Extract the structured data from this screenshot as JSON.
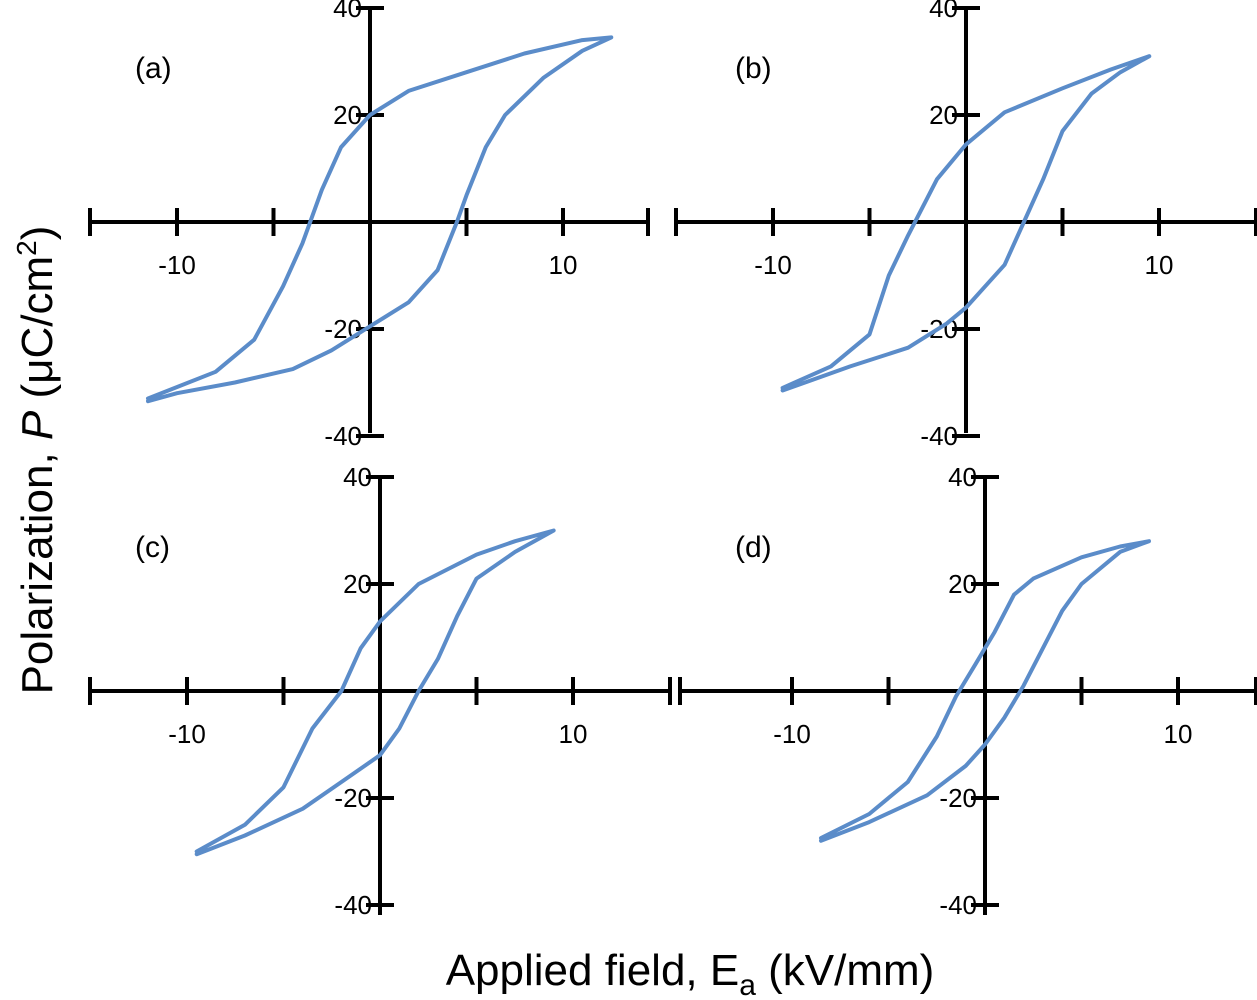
{
  "colors": {
    "series": "#5b8cc9",
    "axes": "#000000"
  },
  "axis_titles": {
    "x_prefix": "Applied field, E",
    "x_sub": "a",
    "x_suffix": " (kV/mm)",
    "y_prefix": "Polarization, ",
    "y_italic": "P",
    "y_suffix": " (μC/cm",
    "y_sup": "2",
    "y_close": ")"
  },
  "chart_data": [
    {
      "type": "line",
      "panel": "(a)",
      "xlim": [
        -15,
        15
      ],
      "ylim": [
        -40,
        40
      ],
      "xticks": [
        -10,
        10
      ],
      "yticks": [
        40,
        20,
        -20,
        -40
      ],
      "x_minor_ticks": [
        -10,
        -5,
        5,
        10
      ],
      "series": [
        {
          "points": [
            [
              -11.5,
              -33
            ],
            [
              -8,
              -28
            ],
            [
              -6,
              -22
            ],
            [
              -4.5,
              -12
            ],
            [
              -3.5,
              -4
            ],
            [
              -2.5,
              6
            ],
            [
              -1.5,
              14
            ],
            [
              0,
              20
            ],
            [
              2,
              24.5
            ],
            [
              5,
              28
            ],
            [
              8,
              31.5
            ],
            [
              11,
              34
            ],
            [
              12.5,
              34.5
            ],
            [
              11,
              32
            ],
            [
              9,
              27
            ],
            [
              7,
              20
            ],
            [
              6,
              14
            ],
            [
              5,
              5
            ],
            [
              4.5,
              0
            ],
            [
              3.5,
              -9
            ],
            [
              2,
              -15
            ],
            [
              0,
              -19.5
            ],
            [
              -2,
              -24
            ],
            [
              -4,
              -27.5
            ],
            [
              -7,
              -30
            ],
            [
              -10,
              -32
            ],
            [
              -11.5,
              -33.5
            ]
          ]
        }
      ]
    },
    {
      "type": "line",
      "panel": "(b)",
      "xlim": [
        -15,
        15
      ],
      "ylim": [
        -40,
        40
      ],
      "xticks": [
        -10,
        10
      ],
      "yticks": [
        40,
        20,
        -20,
        -40
      ],
      "x_minor_ticks": [
        -10,
        -5,
        5,
        10
      ],
      "series": [
        {
          "points": [
            [
              -9.5,
              -31
            ],
            [
              -7,
              -27
            ],
            [
              -5,
              -21
            ],
            [
              -4,
              -10
            ],
            [
              -3,
              -2.5
            ],
            [
              -1.5,
              8
            ],
            [
              0,
              14.5
            ],
            [
              2,
              20.5
            ],
            [
              5,
              25
            ],
            [
              7.5,
              28.5
            ],
            [
              9.5,
              31
            ],
            [
              8,
              28
            ],
            [
              6.5,
              24
            ],
            [
              5,
              17
            ],
            [
              4,
              8
            ],
            [
              3,
              0
            ],
            [
              2,
              -8
            ],
            [
              1,
              -12
            ],
            [
              0,
              -16
            ],
            [
              -1,
              -19
            ],
            [
              -3,
              -23.5
            ],
            [
              -6,
              -27
            ],
            [
              -9.5,
              -31.5
            ]
          ]
        }
      ]
    },
    {
      "type": "line",
      "panel": "(c)",
      "xlim": [
        -15,
        15
      ],
      "ylim": [
        -40,
        40
      ],
      "xticks": [
        -10,
        10
      ],
      "yticks": [
        40,
        20,
        -20,
        -40
      ],
      "x_minor_ticks": [
        -10,
        -5,
        5,
        10
      ],
      "series": [
        {
          "points": [
            [
              -9.5,
              -30
            ],
            [
              -7,
              -25
            ],
            [
              -5,
              -18
            ],
            [
              -3.5,
              -7
            ],
            [
              -2,
              0
            ],
            [
              -1,
              8
            ],
            [
              0,
              13
            ],
            [
              2,
              20
            ],
            [
              5,
              25.5
            ],
            [
              7,
              28
            ],
            [
              9,
              30
            ],
            [
              7,
              26
            ],
            [
              5,
              21
            ],
            [
              4,
              14
            ],
            [
              3,
              6
            ],
            [
              2,
              0
            ],
            [
              1,
              -7
            ],
            [
              0,
              -12
            ],
            [
              -2,
              -17
            ],
            [
              -4,
              -22
            ],
            [
              -7,
              -27
            ],
            [
              -9.5,
              -30.5
            ]
          ]
        }
      ]
    },
    {
      "type": "line",
      "panel": "(d)",
      "xlim": [
        -15,
        15
      ],
      "ylim": [
        -40,
        40
      ],
      "xticks": [
        -10,
        10
      ],
      "yticks": [
        40,
        20,
        -20,
        -40
      ],
      "x_minor_ticks": [
        -10,
        -5,
        5,
        10
      ],
      "series": [
        {
          "points": [
            [
              -8.5,
              -27.5
            ],
            [
              -6,
              -23
            ],
            [
              -4,
              -17
            ],
            [
              -2.5,
              -8.5
            ],
            [
              -1.5,
              -1
            ],
            [
              -0.5,
              5
            ],
            [
              0.5,
              11
            ],
            [
              1.5,
              18
            ],
            [
              2.5,
              21
            ],
            [
              5,
              25
            ],
            [
              7,
              27
            ],
            [
              8.5,
              28
            ],
            [
              7,
              26
            ],
            [
              5,
              20
            ],
            [
              4,
              15
            ],
            [
              3,
              8
            ],
            [
              2,
              1
            ],
            [
              1,
              -5
            ],
            [
              0,
              -10
            ],
            [
              -1,
              -14
            ],
            [
              -3,
              -19.5
            ],
            [
              -6,
              -24.5
            ],
            [
              -8.5,
              -28
            ]
          ]
        }
      ]
    }
  ]
}
